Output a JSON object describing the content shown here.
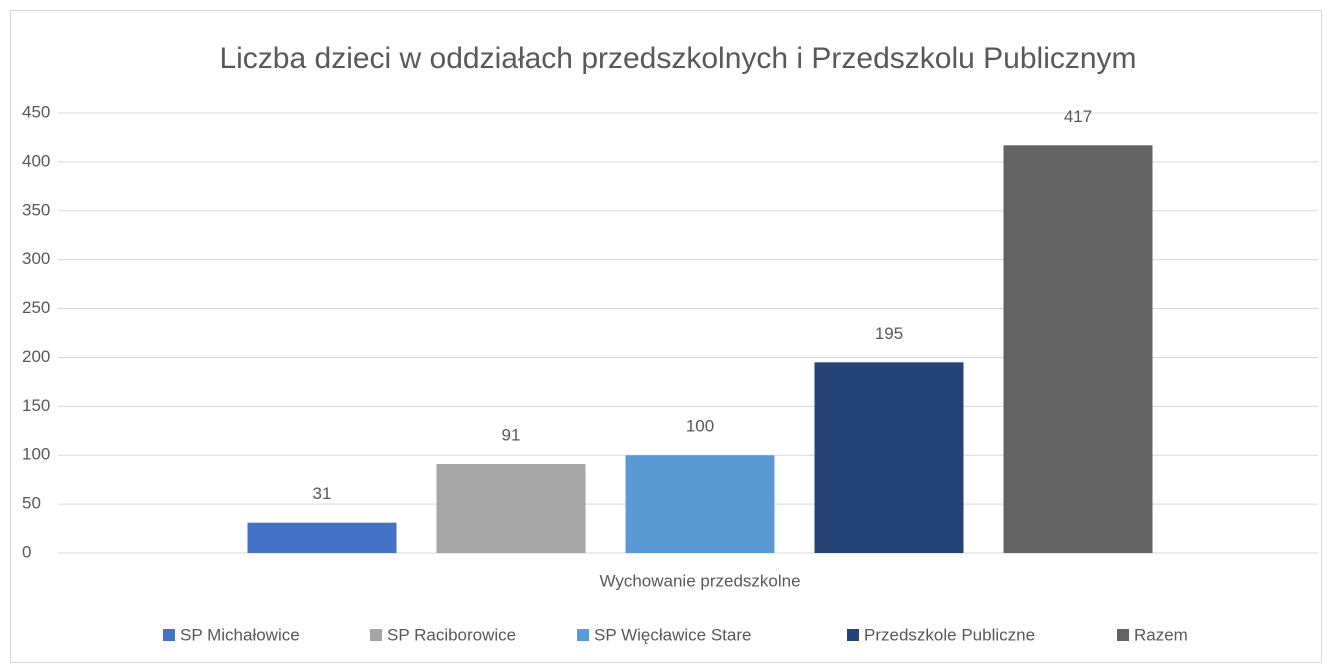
{
  "chart_data": {
    "type": "bar",
    "title": "Liczba dzieci w oddziałach przedszkolnych i Przedszkolu Publicznym",
    "categories": [
      "Wychowanie przedszkolne"
    ],
    "series": [
      {
        "name": "SP Michałowice",
        "color": "#4472c4",
        "values": [
          31
        ]
      },
      {
        "name": "SP Raciborowice",
        "color": "#a5a5a5",
        "values": [
          91
        ]
      },
      {
        "name": "SP Więcławice Stare",
        "color": "#5b9bd5",
        "values": [
          100
        ]
      },
      {
        "name": "Przedszkole Publiczne",
        "color": "#264478",
        "values": [
          195
        ]
      },
      {
        "name": "Razem",
        "color": "#636363",
        "values": [
          417
        ]
      }
    ],
    "ylim": [
      0,
      450
    ],
    "yticks": [
      0,
      50,
      100,
      150,
      200,
      250,
      300,
      350,
      400,
      450
    ],
    "grid": true,
    "legend": "bottom"
  }
}
